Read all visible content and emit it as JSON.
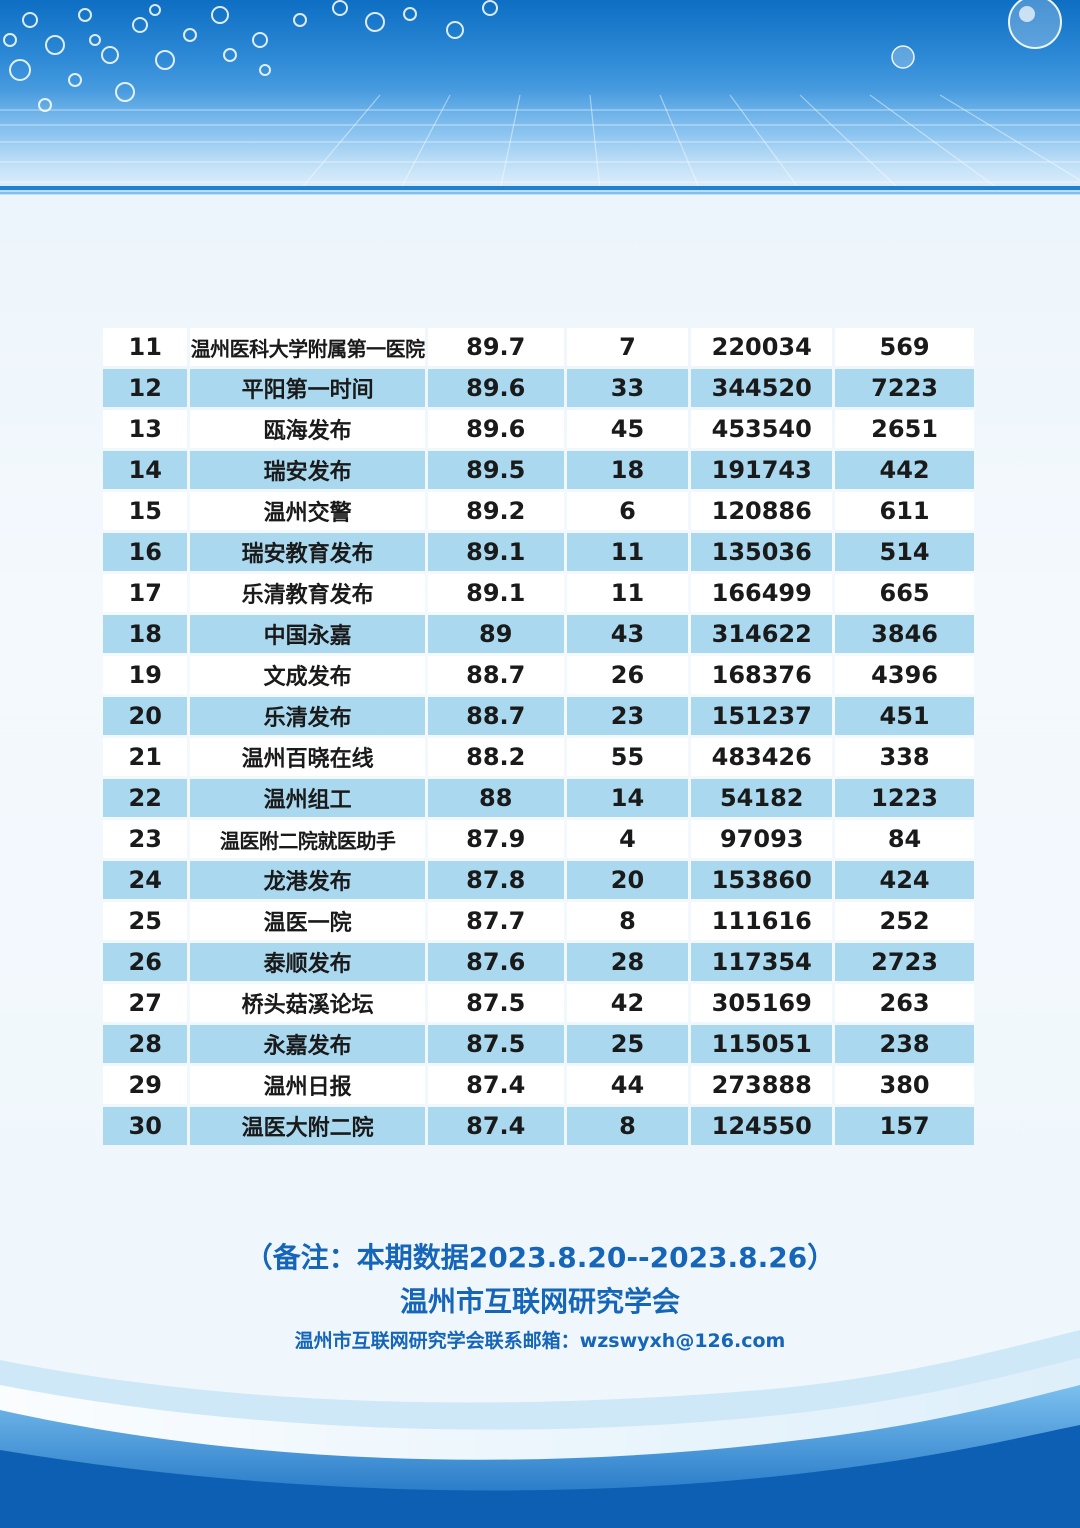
{
  "colors": {
    "row_alt": "#a9d8ef",
    "row_base": "#ffffff",
    "accent_text": "#1565b8",
    "banner": "#0d6ec3"
  },
  "table": {
    "rows": [
      {
        "rank": "11",
        "name": "温州医科大学附属第一医院",
        "score": "89.7",
        "n1": "7",
        "n2": "220034",
        "n3": "569"
      },
      {
        "rank": "12",
        "name": "平阳第一时间",
        "score": "89.6",
        "n1": "33",
        "n2": "344520",
        "n3": "7223"
      },
      {
        "rank": "13",
        "name": "瓯海发布",
        "score": "89.6",
        "n1": "45",
        "n2": "453540",
        "n3": "2651"
      },
      {
        "rank": "14",
        "name": "瑞安发布",
        "score": "89.5",
        "n1": "18",
        "n2": "191743",
        "n3": "442"
      },
      {
        "rank": "15",
        "name": "温州交警",
        "score": "89.2",
        "n1": "6",
        "n2": "120886",
        "n3": "611"
      },
      {
        "rank": "16",
        "name": "瑞安教育发布",
        "score": "89.1",
        "n1": "11",
        "n2": "135036",
        "n3": "514"
      },
      {
        "rank": "17",
        "name": "乐清教育发布",
        "score": "89.1",
        "n1": "11",
        "n2": "166499",
        "n3": "665"
      },
      {
        "rank": "18",
        "name": "中国永嘉",
        "score": "89",
        "n1": "43",
        "n2": "314622",
        "n3": "3846"
      },
      {
        "rank": "19",
        "name": "文成发布",
        "score": "88.7",
        "n1": "26",
        "n2": "168376",
        "n3": "4396"
      },
      {
        "rank": "20",
        "name": "乐清发布",
        "score": "88.7",
        "n1": "23",
        "n2": "151237",
        "n3": "451"
      },
      {
        "rank": "21",
        "name": "温州百晓在线",
        "score": "88.2",
        "n1": "55",
        "n2": "483426",
        "n3": "338"
      },
      {
        "rank": "22",
        "name": "温州组工",
        "score": "88",
        "n1": "14",
        "n2": "54182",
        "n3": "1223"
      },
      {
        "rank": "23",
        "name": "温医附二院就医助手",
        "score": "87.9",
        "n1": "4",
        "n2": "97093",
        "n3": "84"
      },
      {
        "rank": "24",
        "name": "龙港发布",
        "score": "87.8",
        "n1": "20",
        "n2": "153860",
        "n3": "424"
      },
      {
        "rank": "25",
        "name": "温医一院",
        "score": "87.7",
        "n1": "8",
        "n2": "111616",
        "n3": "252"
      },
      {
        "rank": "26",
        "name": "泰顺发布",
        "score": "87.6",
        "n1": "28",
        "n2": "117354",
        "n3": "2723"
      },
      {
        "rank": "27",
        "name": "桥头菇溪论坛",
        "score": "87.5",
        "n1": "42",
        "n2": "305169",
        "n3": "263"
      },
      {
        "rank": "28",
        "name": "永嘉发布",
        "score": "87.5",
        "n1": "25",
        "n2": "115051",
        "n3": "238"
      },
      {
        "rank": "29",
        "name": "温州日报",
        "score": "87.4",
        "n1": "44",
        "n2": "273888",
        "n3": "380"
      },
      {
        "rank": "30",
        "name": "温医大附二院",
        "score": "87.4",
        "n1": "8",
        "n2": "124550",
        "n3": "157"
      }
    ]
  },
  "footer": {
    "note": "（备注：本期数据2023.8.20--2023.8.26）",
    "org": "温州市互联网研究学会",
    "email": "温州市互联网研究学会联系邮箱：wzswyxh@126.com"
  }
}
